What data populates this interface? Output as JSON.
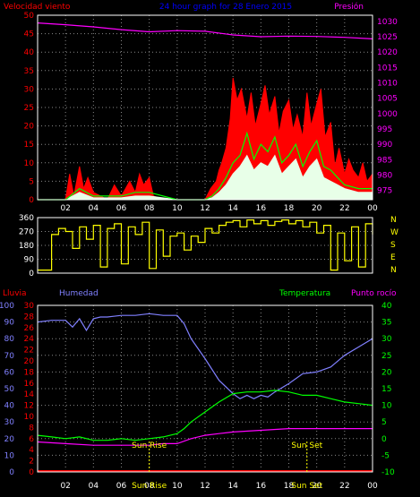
{
  "chart_data": [
    {
      "type": "line",
      "title": "24 hour graph for 28 Enero 2015",
      "left_label": "Velocidad viento",
      "right_label": "Presión",
      "left_axis": {
        "range": [
          0,
          50
        ],
        "ticks": [
          0,
          5,
          10,
          15,
          20,
          25,
          30,
          35,
          40,
          45,
          50
        ]
      },
      "right_axis": {
        "range": [
          972,
          1032
        ],
        "ticks": [
          975,
          980,
          985,
          990,
          995,
          1000,
          1005,
          1010,
          1015,
          1020,
          1025,
          1030
        ]
      },
      "x_ticks": [
        "02",
        "04",
        "06",
        "08",
        "10",
        "12",
        "14",
        "16",
        "18",
        "20",
        "22",
        "00"
      ],
      "x_range": [
        0,
        24
      ],
      "grid": true,
      "colors": {
        "gust": "#ff0000",
        "wind": "#00ff00",
        "fill": "#e8ffe8",
        "pressure": "#ff00ff",
        "left_axis": "#ff0000",
        "right_axis": "#ff00ff",
        "axes": "#ffffff"
      },
      "series": [
        {
          "role": "pressure",
          "x": [
            0,
            2,
            4,
            6,
            8,
            10,
            12,
            14,
            16,
            18,
            20,
            22,
            24
          ],
          "values": [
            1029.5,
            1028.9,
            1028.2,
            1027.3,
            1026.6,
            1027.0,
            1026.8,
            1025.6,
            1025.0,
            1025.2,
            1025.1,
            1024.8,
            1024.3
          ]
        },
        {
          "role": "gust",
          "x": [
            0,
            2,
            2.3,
            2.6,
            3,
            3.3,
            3.6,
            4,
            5,
            5.5,
            6,
            6.3,
            6.6,
            7,
            7.3,
            7.6,
            8,
            8.3,
            9,
            10,
            11,
            12,
            12.4,
            12.8,
            13,
            13.2,
            13.5,
            13.8,
            14,
            14.3,
            14.6,
            15,
            15.3,
            15.6,
            16,
            16.3,
            16.6,
            17,
            17.3,
            17.6,
            18,
            18.3,
            18.6,
            19,
            19.3,
            19.6,
            20,
            20.3,
            20.6,
            21,
            21.3,
            21.6,
            22,
            22.3,
            22.6,
            23,
            23.3,
            23.6,
            24
          ],
          "values": [
            0,
            0,
            7,
            1,
            9,
            3,
            6,
            2,
            0,
            4,
            1,
            3,
            5,
            2,
            7,
            4,
            6,
            1,
            0,
            0,
            0,
            0,
            3,
            5,
            8,
            10,
            14,
            22,
            33,
            27,
            30,
            22,
            29,
            20,
            26,
            31,
            23,
            28,
            18,
            24,
            27,
            19,
            23,
            17,
            29,
            20,
            26,
            30,
            17,
            21,
            9,
            14,
            7,
            11,
            8,
            6,
            10,
            5,
            7
          ]
        },
        {
          "role": "wind",
          "x": [
            0,
            2,
            3,
            4,
            6,
            7,
            8,
            10,
            12,
            12.5,
            13,
            13.5,
            14,
            14.5,
            15,
            15.5,
            16,
            16.5,
            17,
            17.5,
            18,
            18.5,
            19,
            19.5,
            20,
            20.5,
            21,
            21.5,
            22,
            23,
            24
          ],
          "values": [
            0,
            0,
            3,
            1,
            1,
            2,
            2,
            0,
            0,
            1,
            3,
            6,
            10,
            12,
            18,
            11,
            15,
            13,
            17,
            10,
            12,
            15,
            9,
            13,
            16,
            9,
            8,
            6,
            4,
            3,
            3
          ]
        },
        {
          "role": "fill",
          "x": [
            0,
            2,
            3,
            4,
            6,
            7,
            8,
            10,
            12,
            12.5,
            13,
            13.5,
            14,
            14.5,
            15,
            15.5,
            16,
            16.5,
            17,
            17.5,
            18,
            18.5,
            19,
            19.5,
            20,
            20.5,
            21,
            21.5,
            22,
            23,
            24
          ],
          "values": [
            0,
            0,
            2,
            0.5,
            0.5,
            1,
            1,
            0,
            0,
            0.5,
            2,
            4,
            7,
            9,
            12,
            8,
            10,
            9,
            12,
            7,
            9,
            11,
            6,
            9,
            11,
            6,
            5,
            4,
            3,
            2,
            2
          ]
        }
      ]
    },
    {
      "type": "line",
      "left_axis": {
        "range": [
          0,
          360
        ],
        "ticks": [
          0,
          90,
          180,
          270,
          360
        ]
      },
      "right_labels": [
        "N",
        "W",
        "S",
        "E",
        "N"
      ],
      "x_range": [
        0,
        24
      ],
      "colors": {
        "line": "#ffff00",
        "axes": "#ffffff"
      },
      "series": [
        {
          "role": "direction",
          "x": [
            0,
            1,
            1.5,
            2,
            2.5,
            3,
            3.5,
            4,
            4.5,
            5,
            5.5,
            6,
            6.5,
            7,
            7.5,
            8,
            8.5,
            9,
            9.5,
            10,
            10.5,
            11,
            11.5,
            12,
            12.5,
            13,
            13.5,
            14,
            14.5,
            15,
            15.5,
            16,
            16.5,
            17,
            17.5,
            18,
            18.5,
            19,
            19.5,
            20,
            20.5,
            21,
            21.5,
            22,
            22.5,
            23,
            23.5,
            24
          ],
          "values": [
            20,
            250,
            290,
            270,
            160,
            300,
            220,
            310,
            40,
            290,
            320,
            60,
            300,
            250,
            330,
            30,
            280,
            110,
            240,
            260,
            150,
            240,
            200,
            290,
            260,
            310,
            330,
            340,
            300,
            345,
            320,
            340,
            310,
            335,
            345,
            320,
            340,
            300,
            330,
            260,
            310,
            20,
            260,
            80,
            300,
            40,
            320,
            250
          ]
        }
      ]
    },
    {
      "type": "line",
      "left_labels": [
        "Lluvia",
        "Humedad"
      ],
      "right_labels": [
        "Temperatura",
        "Punto rocío"
      ],
      "rain_axis": {
        "range": [
          0,
          30
        ],
        "ticks": [
          0,
          2,
          4,
          6,
          8,
          10,
          12,
          14,
          16,
          18,
          20,
          22,
          24,
          26,
          28,
          30
        ]
      },
      "humidity_axis": {
        "range": [
          0,
          100
        ],
        "ticks": [
          0,
          10,
          20,
          30,
          40,
          50,
          60,
          70,
          80,
          90,
          100
        ]
      },
      "temp_axis": {
        "range": [
          -10,
          40
        ],
        "ticks": [
          -10,
          -5,
          0,
          5,
          10,
          15,
          20,
          25,
          30,
          35,
          40
        ]
      },
      "x_ticks": [
        "02",
        "04",
        "06",
        "08",
        "10",
        "12",
        "14",
        "16",
        "18",
        "20",
        "22",
        "00"
      ],
      "x_range": [
        0,
        24
      ],
      "grid": true,
      "annotations": [
        {
          "text": "Sun Rise",
          "x": 8
        },
        {
          "text": "Sun Set",
          "x": 19.3
        }
      ],
      "colors": {
        "rain": "#ff0000",
        "humidity": "#8080ff",
        "temperature": "#00ff00",
        "dewpoint": "#ff00ff",
        "temp_axis": "#00ff00",
        "axes": "#ffffff"
      },
      "series": [
        {
          "role": "rain",
          "x": [
            0,
            24
          ],
          "values": [
            0,
            0
          ]
        },
        {
          "role": "humidity",
          "x": [
            0,
            1,
            2,
            2.5,
            3,
            3.5,
            4,
            4.5,
            5,
            6,
            7,
            8,
            9,
            10,
            10.5,
            11,
            12,
            13,
            14,
            14.5,
            15,
            15.5,
            16,
            16.5,
            17,
            18,
            19,
            20,
            21,
            22,
            23,
            24
          ],
          "values": [
            90,
            91,
            91,
            87,
            92,
            85,
            92,
            93,
            93,
            94,
            94,
            95,
            94,
            94,
            89,
            80,
            68,
            55,
            47,
            44,
            46,
            44,
            46,
            45,
            48,
            53,
            59,
            60,
            63,
            70,
            75,
            80
          ]
        },
        {
          "role": "temperature",
          "x": [
            0,
            1,
            2,
            3,
            4,
            5,
            6,
            7,
            8,
            9,
            10,
            10.5,
            11,
            12,
            13,
            14,
            15,
            16,
            17,
            18,
            19,
            20,
            21,
            22,
            23,
            24
          ],
          "values": [
            1,
            0.5,
            0,
            0.5,
            -0.5,
            -0.5,
            0,
            -0.5,
            0,
            0.5,
            1.5,
            3,
            5,
            8,
            11,
            13.5,
            14,
            14,
            14.5,
            14,
            13,
            13,
            12,
            11,
            10.5,
            10
          ]
        },
        {
          "role": "dewpoint",
          "x": [
            0,
            2,
            4,
            6,
            8,
            9,
            10,
            11,
            12,
            13,
            14,
            16,
            18,
            20,
            22,
            24
          ],
          "values": [
            -1,
            -1.5,
            -2,
            -2,
            -2,
            -1.5,
            -1.5,
            0,
            1,
            1.5,
            2,
            2.5,
            3,
            3,
            3,
            3
          ]
        }
      ]
    }
  ]
}
